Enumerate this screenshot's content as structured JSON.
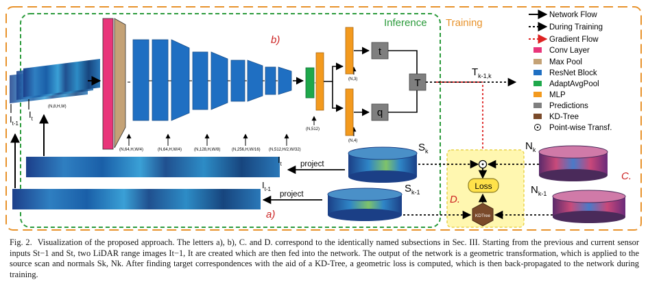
{
  "diagram": {
    "inference_label": "Inference",
    "training_label": "Training",
    "section_a": "a)",
    "section_b": "b)",
    "section_c": "C.",
    "section_d": "D.",
    "inputs": {
      "i_t_minus_1": "I",
      "i_t_minus_1_sub": "t-1",
      "i_t": "I",
      "i_t_sub": "t",
      "input_shape": "(N,8,H,W)"
    },
    "shapes": [
      "(N,64,H,W/4)",
      "(N,64,H,W/4)",
      "(N,128,H,W/8)",
      "(N,256,H,W/16)",
      "(N,512,H/2,W/32)",
      "(N,512)",
      "(N,3)",
      "(N,4)"
    ],
    "predictions": {
      "t": "t",
      "q": "q",
      "T": "T"
    },
    "transform_label": "T",
    "transform_sub": "k-1,k",
    "projection": {
      "i_t": "I",
      "i_t_sub": "t",
      "i_t_minus_1": "I",
      "i_t_minus_1_sub": "t-1",
      "project_1": "project",
      "project_2": "project"
    },
    "scans": {
      "s_k": "S",
      "s_k_sub": "k",
      "s_k_minus_1": "S",
      "s_k_minus_1_sub": "k-1",
      "n_k": "N",
      "n_k_sub": "k",
      "n_k_minus_1": "N",
      "n_k_minus_1_sub": "k-1"
    },
    "loss_label": "Loss",
    "kdtree_label": "KDTree",
    "pointwise_symbol": "⊙"
  },
  "legend": [
    {
      "label": "Network Flow",
      "type": "arrow-solid",
      "color": "#000000"
    },
    {
      "label": "During Training",
      "type": "arrow-dotted",
      "color": "#000000"
    },
    {
      "label": "Gradient Flow",
      "type": "arrow-dotted",
      "color": "#dd2222"
    },
    {
      "label": "Conv Layer",
      "type": "swatch",
      "color": "#e8357a"
    },
    {
      "label": "Max Pool",
      "type": "swatch",
      "color": "#c4a276"
    },
    {
      "label": "ResNet Block",
      "type": "swatch",
      "color": "#1f6fc2"
    },
    {
      "label": "AdaptAvgPool",
      "type": "swatch",
      "color": "#1ea84b"
    },
    {
      "label": "MLP",
      "type": "swatch",
      "color": "#f39a1e"
    },
    {
      "label": "Predictions",
      "type": "swatch",
      "color": "#7f7f7f"
    },
    {
      "label": "KD-Tree",
      "type": "swatch",
      "color": "#7a4a2a"
    },
    {
      "label": "Point-wise Transf.",
      "type": "odot",
      "color": "#000000"
    }
  ],
  "colors": {
    "inference_border": "#2a9a3a",
    "training_border": "#e8922a",
    "gradient": "#dd2222",
    "d_panel_bg": "#fff7b0",
    "loss_bg": "#ffe24a",
    "kdtree_bg": "#7a4a2a"
  },
  "caption": {
    "label": "Fig. 2.",
    "text": "Visualization of the proposed approach. The letters a), b), C. and D. correspond to the identically named subsections in Sec. III. Starting from the previous and current sensor inputs St−1 and St, two LiDAR range images It−1, It are created which are then fed into the network. The output of the network is a geometric transformation, which is applied to the source scan and normals Sk, Nk. After finding target correspondences with the aid of a KD-Tree, a geometric loss is computed, which is then back-propagated to the network during training."
  }
}
